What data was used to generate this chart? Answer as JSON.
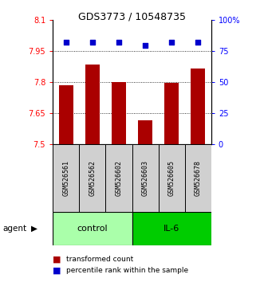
{
  "title": "GDS3773 / 10548735",
  "samples": [
    "GSM526561",
    "GSM526562",
    "GSM526602",
    "GSM526603",
    "GSM526605",
    "GSM526678"
  ],
  "bar_values": [
    7.785,
    7.885,
    7.8,
    7.615,
    7.795,
    7.865
  ],
  "percentile_values": [
    82,
    82,
    82,
    79,
    82,
    82
  ],
  "ylim": [
    7.5,
    8.1
  ],
  "yticks": [
    7.5,
    7.65,
    7.8,
    7.95,
    8.1
  ],
  "ytick_labels": [
    "7.5",
    "7.65",
    "7.8",
    "7.95",
    "8.1"
  ],
  "y2ticks": [
    0,
    25,
    50,
    75,
    100
  ],
  "y2tick_labels": [
    "0",
    "25",
    "50",
    "75",
    "100%"
  ],
  "grid_values": [
    7.65,
    7.8,
    7.95
  ],
  "bar_color": "#AA0000",
  "dot_color": "#0000CC",
  "groups": [
    {
      "label": "control",
      "indices": [
        0,
        1,
        2
      ],
      "color": "#AAFFAA"
    },
    {
      "label": "IL-6",
      "indices": [
        3,
        4,
        5
      ],
      "color": "#00CC00"
    }
  ],
  "agent_label": "agent",
  "legend_items": [
    {
      "label": "transformed count",
      "color": "#AA0000"
    },
    {
      "label": "percentile rank within the sample",
      "color": "#0000CC"
    }
  ],
  "bar_width": 0.55,
  "x_positions": [
    0,
    1,
    2,
    3,
    4,
    5
  ],
  "control_color": "#CCFFCC",
  "il6_color": "#33CC33",
  "sample_box_color": "#D0D0D0"
}
